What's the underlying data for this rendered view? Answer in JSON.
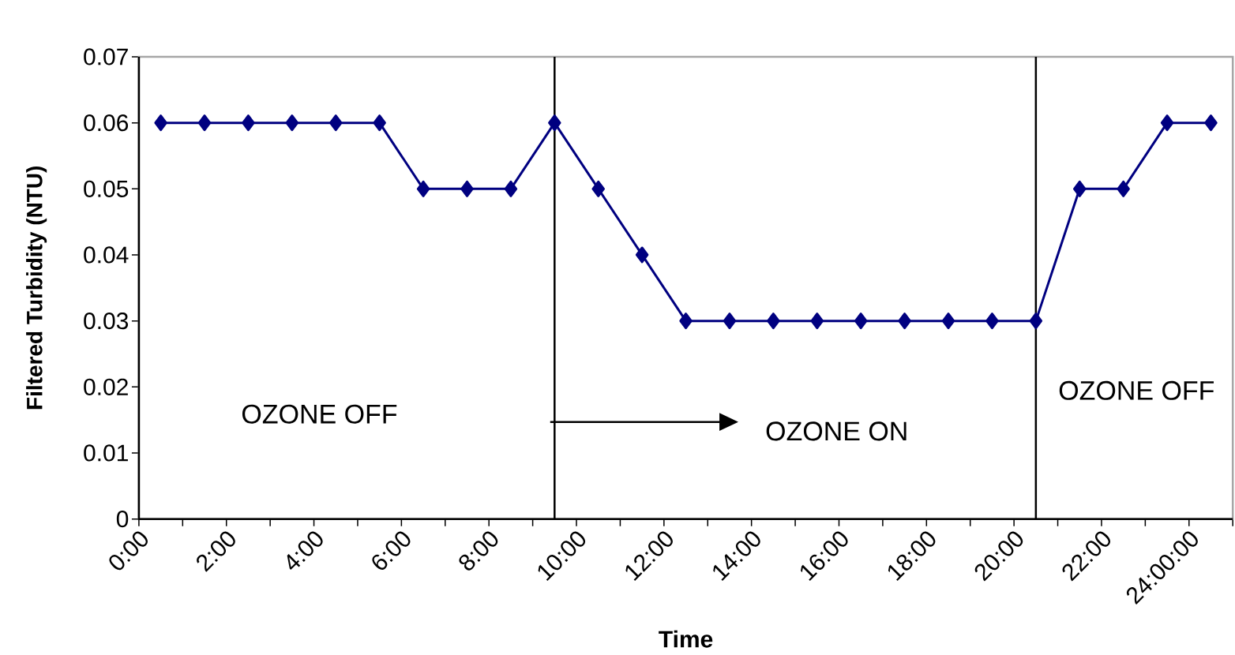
{
  "chart_data": {
    "type": "line",
    "xlabel": "Time",
    "ylabel": "Filtered Turbidity (NTU)",
    "x": [
      0.5,
      1.5,
      2.5,
      3.5,
      4.5,
      5.5,
      6.5,
      7.5,
      8.5,
      9.5,
      10.5,
      11.5,
      12.5,
      13.5,
      14.5,
      15.5,
      16.5,
      17.5,
      18.5,
      19.5,
      20.5,
      21.5,
      22.5,
      23.5,
      24.5
    ],
    "series": [
      {
        "color": "#000080",
        "values": [
          0.06,
          0.06,
          0.06,
          0.06,
          0.06,
          0.06,
          0.05,
          0.05,
          0.05,
          0.06,
          0.05,
          0.04,
          0.03,
          0.03,
          0.03,
          0.03,
          0.03,
          0.03,
          0.03,
          0.03,
          0.03,
          0.05,
          0.05,
          0.06,
          0.06
        ]
      }
    ],
    "xlim": [
      0,
      25
    ],
    "ylim": [
      0,
      0.07
    ],
    "xticks": [
      {
        "value": 0,
        "label": "0:00"
      },
      {
        "value": 1,
        "label": null
      },
      {
        "value": 2,
        "label": "2:00"
      },
      {
        "value": 3,
        "label": null
      },
      {
        "value": 4,
        "label": "4:00"
      },
      {
        "value": 5,
        "label": null
      },
      {
        "value": 6,
        "label": "6:00"
      },
      {
        "value": 7,
        "label": null
      },
      {
        "value": 8,
        "label": "8:00"
      },
      {
        "value": 9,
        "label": null
      },
      {
        "value": 10,
        "label": "10:00"
      },
      {
        "value": 11,
        "label": null
      },
      {
        "value": 12,
        "label": "12:00"
      },
      {
        "value": 13,
        "label": null
      },
      {
        "value": 14,
        "label": "14:00"
      },
      {
        "value": 15,
        "label": null
      },
      {
        "value": 16,
        "label": "16:00"
      },
      {
        "value": 17,
        "label": null
      },
      {
        "value": 18,
        "label": "18:00"
      },
      {
        "value": 19,
        "label": null
      },
      {
        "value": 20,
        "label": "20:00"
      },
      {
        "value": 21,
        "label": null
      },
      {
        "value": 22,
        "label": "22:00"
      },
      {
        "value": 23,
        "label": null
      },
      {
        "value": 24,
        "label": "24:00:00"
      },
      {
        "value": 25,
        "label": null
      }
    ],
    "yticks": [
      0,
      0.01,
      0.02,
      0.03,
      0.04,
      0.05,
      0.06,
      0.07
    ],
    "ref_lines": [
      {
        "axis": "x",
        "value": 9.5,
        "color": "#000000"
      },
      {
        "axis": "x",
        "value": 20.5,
        "color": "#000000"
      }
    ],
    "annotations": [
      "OZONE OFF",
      "OZONE ON",
      "OZONE OFF"
    ],
    "marker": "diamond",
    "line_style": "solid",
    "grid": false
  }
}
